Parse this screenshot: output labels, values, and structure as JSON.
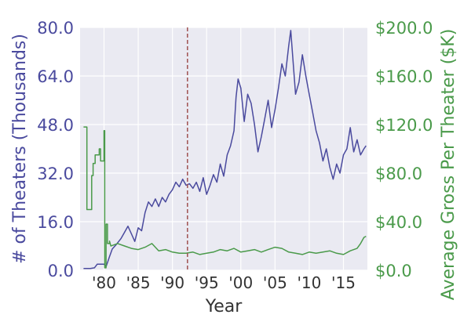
{
  "chart_data": {
    "type": "line",
    "xlabel": "Year",
    "ylabel_left": "# of Theaters (Thousands)",
    "ylabel_right": "Average Gross Per Theater ($K)",
    "x_range": [
      1976.5,
      2018.5
    ],
    "y_left_range": [
      0,
      80
    ],
    "y_right_range": [
      0,
      200
    ],
    "x_ticks": [
      {
        "value": 1980,
        "label": "'80"
      },
      {
        "value": 1985,
        "label": "'85"
      },
      {
        "value": 1990,
        "label": "'90"
      },
      {
        "value": 1995,
        "label": "'95"
      },
      {
        "value": 2000,
        "label": "'00"
      },
      {
        "value": 2005,
        "label": "'05"
      },
      {
        "value": 2010,
        "label": "'10"
      },
      {
        "value": 2015,
        "label": "'15"
      }
    ],
    "y_left_ticks": [
      "0.0",
      "16.0",
      "32.0",
      "48.0",
      "64.0",
      "80.0"
    ],
    "y_right_ticks": [
      "$0.0",
      "$40.0",
      "$80.0",
      "$120.0",
      "$160.0",
      "$200.0"
    ],
    "grid": true,
    "reference_line": {
      "x": 1992.2,
      "style": "dashed",
      "color": "#a05050"
    },
    "colors": {
      "left_series": "#4a4a9e",
      "right_series": "#4a9a4a",
      "plot_bg": "#eaeaf2",
      "grid": "#ffffff"
    },
    "series": [
      {
        "axis": "left",
        "x": [
          1977.0,
          1978.0,
          1978.6,
          1979.0,
          1980.0,
          1980.3,
          1980.5,
          1980.8,
          1981.2,
          1981.8,
          1982.5,
          1983.0,
          1983.5,
          1984.0,
          1984.5,
          1985.0,
          1985.5,
          1986.0,
          1986.5,
          1987.0,
          1987.5,
          1988.0,
          1988.5,
          1989.0,
          1989.5,
          1990.0,
          1990.5,
          1991.0,
          1991.5,
          1992.0,
          1992.5,
          1993.0,
          1993.5,
          1994.0,
          1994.5,
          1995.0,
          1995.5,
          1996.0,
          1996.5,
          1997.0,
          1997.5,
          1998.0,
          1998.5,
          1999.0,
          1999.3,
          1999.6,
          2000.0,
          2000.5,
          2001.0,
          2001.5,
          2002.0,
          2002.5,
          2003.0,
          2003.5,
          2004.0,
          2004.5,
          2005.0,
          2005.5,
          2006.0,
          2006.5,
          2007.0,
          2007.3,
          2007.6,
          2008.0,
          2008.5,
          2009.0,
          2009.5,
          2010.0,
          2010.5,
          2011.0,
          2011.5,
          2012.0,
          2012.5,
          2013.0,
          2013.5,
          2014.0,
          2014.5,
          2015.0,
          2015.5,
          2016.0,
          2016.5,
          2017.0,
          2017.5,
          2018.0,
          2018.3
        ],
        "values": [
          0.6,
          0.6,
          0.8,
          2.0,
          2.0,
          1.2,
          2.5,
          4.5,
          7.0,
          8.5,
          10.5,
          12.5,
          14.5,
          12.0,
          9.5,
          14.0,
          13.0,
          19.0,
          22.5,
          21.0,
          23.5,
          21.0,
          24.0,
          22.5,
          25.0,
          26.5,
          29.0,
          27.5,
          30.0,
          28.0,
          28.5,
          27.0,
          29.0,
          26.0,
          30.5,
          25.0,
          28.0,
          31.5,
          29.0,
          35.0,
          31.0,
          38.0,
          41.0,
          46.0,
          57.0,
          63.0,
          60.0,
          49.0,
          58.0,
          55.0,
          48.0,
          39.0,
          44.0,
          50.0,
          56.0,
          47.0,
          53.0,
          60.0,
          68.0,
          64.0,
          74.0,
          79.0,
          70.0,
          58.0,
          62.0,
          71.0,
          64.0,
          58.0,
          52.0,
          46.0,
          42.0,
          36.0,
          40.0,
          34.0,
          30.0,
          35.0,
          32.0,
          38.0,
          40.0,
          47.0,
          39.0,
          43.0,
          38.0,
          40.0,
          41.0
        ]
      },
      {
        "axis": "right",
        "x": [
          1977.0,
          1977.5,
          1977.5,
          1978.2,
          1978.2,
          1978.4,
          1978.4,
          1978.7,
          1978.7,
          1979.3,
          1979.3,
          1979.5,
          1979.5,
          1980.0,
          1980.0,
          1980.1,
          1980.1,
          1980.3,
          1980.3,
          1980.5,
          1980.5,
          1980.8,
          1980.8,
          1981.0,
          1981.5,
          1982.0,
          1983.0,
          1984.0,
          1985.0,
          1986.0,
          1987.0,
          1988.0,
          1989.0,
          1990.0,
          1991.0,
          1992.0,
          1993.0,
          1994.0,
          1995.0,
          1996.0,
          1997.0,
          1998.0,
          1999.0,
          2000.0,
          2001.0,
          2002.0,
          2003.0,
          2004.0,
          2005.0,
          2006.0,
          2007.0,
          2008.0,
          2009.0,
          2010.0,
          2011.0,
          2012.0,
          2013.0,
          2014.0,
          2015.0,
          2016.0,
          2017.0,
          2017.5,
          2018.0,
          2018.3
        ],
        "values": [
          118.0,
          118.0,
          50.0,
          50.0,
          78.0,
          78.0,
          88.0,
          88.0,
          95.0,
          95.0,
          100.0,
          100.0,
          90.0,
          90.0,
          115.0,
          115.0,
          2.0,
          2.0,
          38.0,
          38.0,
          22.0,
          22.0,
          24.0,
          20.0,
          21.0,
          22.0,
          20.0,
          18.0,
          17.0,
          19.0,
          22.0,
          16.0,
          17.0,
          15.0,
          14.0,
          14.0,
          15.0,
          13.0,
          14.0,
          15.0,
          17.0,
          16.0,
          18.0,
          15.0,
          16.0,
          17.0,
          15.0,
          17.0,
          19.0,
          18.0,
          15.0,
          14.0,
          13.0,
          15.0,
          14.0,
          15.0,
          16.0,
          14.0,
          13.0,
          16.0,
          18.0,
          22.0,
          27.0,
          28.0
        ]
      }
    ]
  }
}
